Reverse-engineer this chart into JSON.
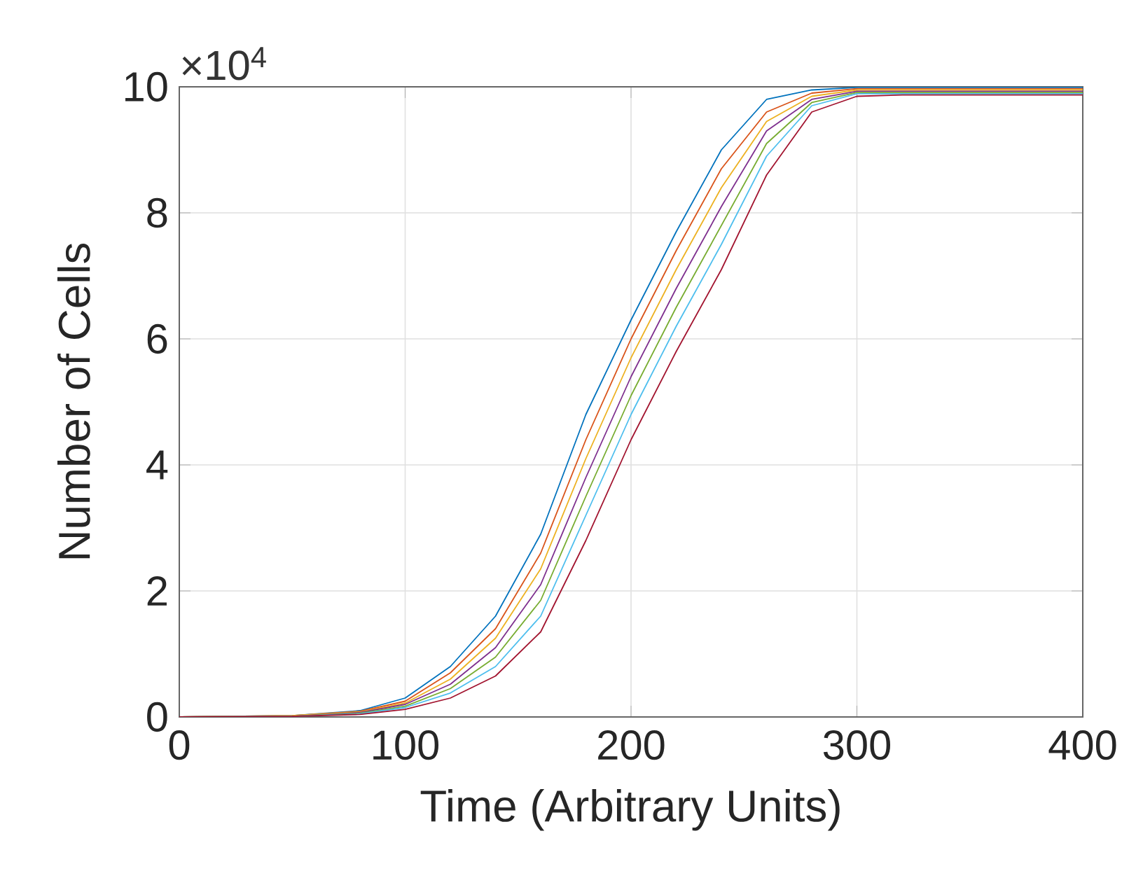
{
  "chart_data": {
    "type": "line",
    "xlabel": "Time (Arbitrary Units)",
    "ylabel": "Number of Cells",
    "annotations": [
      "×10$^{4}$"
    ],
    "x": [
      0,
      50,
      80,
      100,
      120,
      140,
      160,
      180,
      200,
      220,
      240,
      260,
      280,
      300,
      320,
      350,
      400
    ],
    "xlim": [
      0,
      400
    ],
    "xticks": [
      0,
      100,
      200,
      300,
      400
    ],
    "ylim": [
      0,
      10
    ],
    "yticks": [
      0,
      2,
      4,
      6,
      8,
      10
    ],
    "grid": true,
    "marker": "none",
    "line_style": "solid",
    "series": [
      {
        "color": "#0072bd",
        "values": [
          0,
          0.02,
          0.1,
          0.3,
          0.8,
          1.6,
          2.9,
          4.8,
          6.3,
          7.7,
          9.0,
          9.8,
          9.95,
          9.99,
          9.99,
          9.99,
          9.99
        ]
      },
      {
        "color": "#d95319",
        "values": [
          0,
          0.02,
          0.09,
          0.25,
          0.7,
          1.4,
          2.6,
          4.4,
          6.0,
          7.4,
          8.7,
          9.6,
          9.9,
          9.97,
          9.97,
          9.97,
          9.97
        ]
      },
      {
        "color": "#edb120",
        "values": [
          0,
          0.02,
          0.08,
          0.22,
          0.6,
          1.25,
          2.35,
          4.1,
          5.7,
          7.1,
          8.4,
          9.45,
          9.85,
          9.95,
          9.95,
          9.95,
          9.95
        ]
      },
      {
        "color": "#7e2f8e",
        "values": [
          0,
          0.01,
          0.07,
          0.2,
          0.52,
          1.1,
          2.1,
          3.8,
          5.4,
          6.8,
          8.1,
          9.3,
          9.8,
          9.93,
          9.93,
          9.93,
          9.93
        ]
      },
      {
        "color": "#77ac30",
        "values": [
          0,
          0.01,
          0.06,
          0.17,
          0.45,
          0.95,
          1.85,
          3.5,
          5.1,
          6.5,
          7.8,
          9.1,
          9.75,
          9.91,
          9.91,
          9.91,
          9.91
        ]
      },
      {
        "color": "#4dbeee",
        "values": [
          0,
          0.01,
          0.05,
          0.15,
          0.38,
          0.8,
          1.6,
          3.2,
          4.8,
          6.2,
          7.5,
          8.9,
          9.7,
          9.89,
          9.89,
          9.89,
          9.89
        ]
      },
      {
        "color": "#a2142f",
        "values": [
          0,
          0.01,
          0.04,
          0.12,
          0.3,
          0.65,
          1.35,
          2.8,
          4.4,
          5.8,
          7.1,
          8.6,
          9.6,
          9.85,
          9.87,
          9.87,
          9.87
        ]
      }
    ]
  }
}
